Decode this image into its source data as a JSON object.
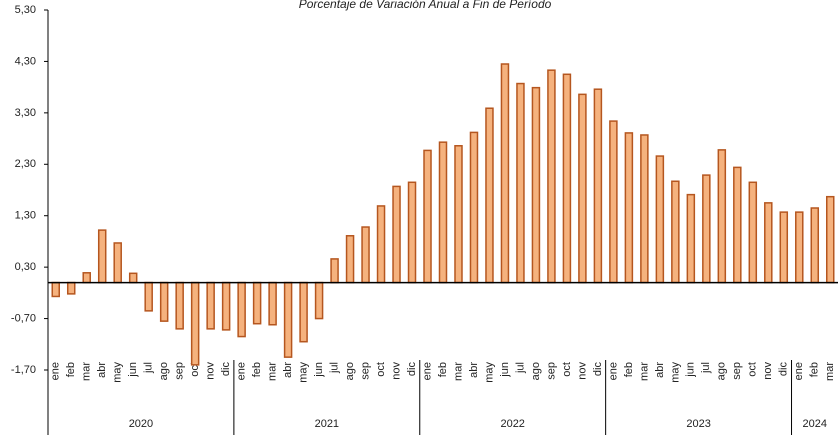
{
  "chart_data": {
    "type": "bar",
    "title": "Porcentaje de Variación Anual a Fin de Período",
    "categories": [
      "ene",
      "feb",
      "mar",
      "abr",
      "may",
      "jun",
      "jul",
      "ago",
      "sep",
      "oct",
      "nov",
      "dic",
      "ene",
      "feb",
      "mar",
      "abr",
      "may",
      "jun",
      "jul",
      "ago",
      "sep",
      "oct",
      "nov",
      "dic",
      "ene",
      "feb",
      "mar",
      "abr",
      "may",
      "jun",
      "jul",
      "ago",
      "sep",
      "oct",
      "nov",
      "dic",
      "ene",
      "feb",
      "mar",
      "abr",
      "may",
      "jun",
      "jul",
      "ago",
      "sep",
      "oct",
      "nov",
      "dic",
      "ene",
      "feb",
      "mar"
    ],
    "category_groups": [
      {
        "label": "2020",
        "size": 12
      },
      {
        "label": "2021",
        "size": 12
      },
      {
        "label": "2022",
        "size": 12
      },
      {
        "label": "2023",
        "size": 12
      },
      {
        "label": "2024",
        "size": 3
      }
    ],
    "values": [
      -0.27,
      -0.22,
      0.19,
      1.02,
      0.77,
      0.18,
      -0.55,
      -0.75,
      -0.9,
      -1.6,
      -0.9,
      -0.92,
      -1.05,
      -0.8,
      -0.82,
      -1.45,
      -1.15,
      -0.7,
      0.46,
      0.91,
      1.08,
      1.49,
      1.87,
      1.95,
      2.57,
      2.73,
      2.66,
      2.92,
      3.39,
      4.25,
      3.87,
      3.79,
      4.13,
      4.05,
      3.66,
      3.76,
      3.14,
      2.91,
      2.87,
      2.46,
      1.97,
      1.71,
      2.09,
      2.58,
      2.24,
      1.95,
      1.55,
      1.37,
      1.37,
      1.45,
      1.67
    ],
    "color": "#f5b27e",
    "edge_color": "#b5561f",
    "ylim": [
      -1.7,
      5.3
    ],
    "yticks": [
      {
        "value": -1.7,
        "label": "-1,70"
      },
      {
        "value": -0.7,
        "label": "-0,70"
      },
      {
        "value": 0.3,
        "label": "0,30"
      },
      {
        "value": 1.3,
        "label": "1,30"
      },
      {
        "value": 2.3,
        "label": "2,30"
      },
      {
        "value": 3.3,
        "label": "3,30"
      },
      {
        "value": 4.3,
        "label": "4,30"
      },
      {
        "value": 5.3,
        "label": "5,30"
      }
    ],
    "grid": false
  }
}
